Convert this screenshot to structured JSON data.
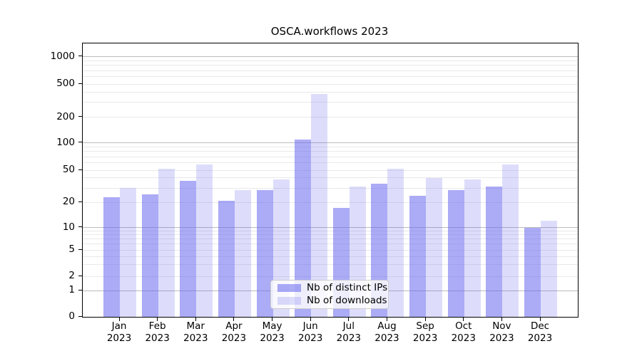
{
  "chart_data": {
    "type": "bar",
    "title": "OSCA.workflows 2023",
    "categories": [
      "Jan 2023",
      "Feb 2023",
      "Mar 2023",
      "Apr 2023",
      "May 2023",
      "Jun 2023",
      "Jul 2023",
      "Aug 2023",
      "Sep 2023",
      "Oct 2023",
      "Nov 2023",
      "Dec 2023"
    ],
    "series": [
      {
        "name": "Nb of distinct IPs",
        "color": "rgba(102,102,238,0.55)",
        "values": [
          23,
          25,
          37,
          21,
          28,
          110,
          17,
          34,
          24,
          28,
          31,
          10
        ]
      },
      {
        "name": "Nb of downloads",
        "color": "rgba(102,102,238,0.22)",
        "values": [
          30,
          52,
          58,
          28,
          38,
          380,
          31,
          52,
          40,
          38,
          58,
          12
        ]
      }
    ],
    "yscale": "symlog",
    "yticks": [
      0,
      1,
      2,
      5,
      10,
      20,
      50,
      100,
      200,
      500,
      1000
    ],
    "minor_gridlines": [
      2,
      3,
      4,
      5,
      6,
      7,
      8,
      9,
      20,
      30,
      40,
      50,
      60,
      70,
      80,
      90,
      200,
      300,
      400,
      500,
      600,
      700,
      800,
      900
    ],
    "major_gridlines": [
      1,
      10,
      100,
      1000
    ],
    "xlabel": "",
    "ylabel": "",
    "grid": true,
    "legend_position": "lower center"
  },
  "colors": {
    "major_grid": "#bbbbbb",
    "minor_grid": "#e9e9e9",
    "spine": "#000000",
    "background": "#ffffff"
  }
}
